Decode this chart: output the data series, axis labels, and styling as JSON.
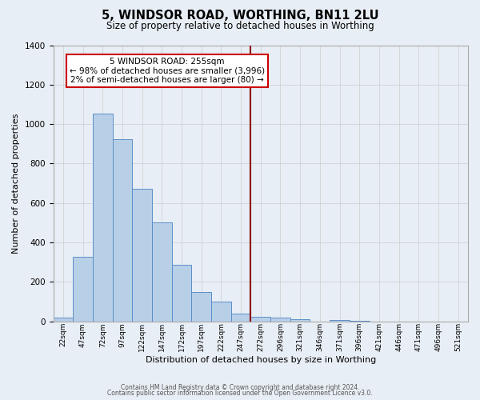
{
  "title": "5, WINDSOR ROAD, WORTHING, BN11 2LU",
  "subtitle": "Size of property relative to detached houses in Worthing",
  "xlabel": "Distribution of detached houses by size in Worthing",
  "ylabel": "Number of detached properties",
  "bar_labels": [
    "22sqm",
    "47sqm",
    "72sqm",
    "97sqm",
    "122sqm",
    "147sqm",
    "172sqm",
    "197sqm",
    "222sqm",
    "247sqm",
    "272sqm",
    "296sqm",
    "321sqm",
    "346sqm",
    "371sqm",
    "396sqm",
    "421sqm",
    "446sqm",
    "471sqm",
    "496sqm",
    "521sqm"
  ],
  "bar_values": [
    18,
    328,
    1055,
    922,
    672,
    500,
    285,
    148,
    100,
    38,
    22,
    18,
    10,
    0,
    5,
    2,
    0,
    0,
    0,
    0,
    0
  ],
  "bar_color": "#b8cfe8",
  "bar_edge_color": "#5b8fc9",
  "annotation_title": "5 WINDSOR ROAD: 255sqm",
  "annotation_line1": "← 98% of detached houses are smaller (3,996)",
  "annotation_line2": "2% of semi-detached houses are larger (80) →",
  "annotation_box_color": "#ffffff",
  "annotation_box_edge_color": "#cc0000",
  "vline_color": "#8b0000",
  "grid_color": "#cccccc",
  "background_color": "#e8eef5",
  "footer_line1": "Contains HM Land Registry data © Crown copyright and database right 2024.",
  "footer_line2": "Contains public sector information licensed under the Open Government Licence v3.0.",
  "ylim": [
    0,
    1400
  ],
  "yticks": [
    0,
    200,
    400,
    600,
    800,
    1000,
    1200,
    1400
  ],
  "vline_x_index": 9.5
}
